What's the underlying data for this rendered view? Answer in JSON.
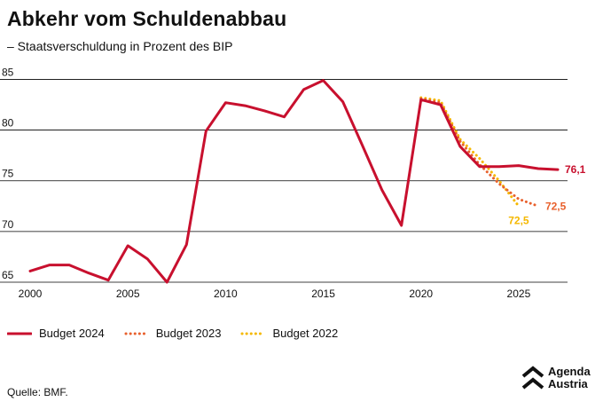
{
  "header": {
    "title": "Abkehr vom Schuldenabbau",
    "subtitle": "– Staatsverschuldung in Prozent des BIP"
  },
  "footer": {
    "source": "Quelle: BMF.",
    "logo_line1": "Agenda",
    "logo_line2": "Austria"
  },
  "chart_data": {
    "type": "line",
    "title": "Abkehr vom Schuldenabbau",
    "subtitle": "– Staatsverschuldung in Prozent des BIP",
    "xlim": [
      2000,
      2027.5
    ],
    "ylim": [
      65,
      86
    ],
    "x_ticks": [
      "2000",
      "2005",
      "2010",
      "2015",
      "2020",
      "2025"
    ],
    "y_ticks": [
      "65",
      "70",
      "75",
      "80",
      "85"
    ],
    "grid": "horizontal",
    "legend_position": "bottom-left",
    "series": [
      {
        "name": "Budget 2024",
        "color": "#c8102e",
        "style": "solid",
        "x": [
          2000,
          2001,
          2002,
          2003,
          2004,
          2005,
          2006,
          2007,
          2008,
          2009,
          2010,
          2011,
          2012,
          2013,
          2014,
          2015,
          2016,
          2017,
          2018,
          2019,
          2020,
          2021,
          2022,
          2023,
          2024,
          2025,
          2026,
          2027
        ],
        "values": [
          66.1,
          66.7,
          66.7,
          65.9,
          65.2,
          68.6,
          67.3,
          65.0,
          68.7,
          79.9,
          82.7,
          82.4,
          81.9,
          81.3,
          84.0,
          84.9,
          82.8,
          78.5,
          74.1,
          70.6,
          83.0,
          82.5,
          78.4,
          76.4,
          76.4,
          76.5,
          76.2,
          76.1
        ],
        "end_label": "76,1"
      },
      {
        "name": "Budget 2023",
        "color": "#e8602c",
        "style": "dotted",
        "x": [
          2020,
          2021,
          2022,
          2023,
          2024,
          2025,
          2026
        ],
        "values": [
          83.1,
          82.7,
          78.9,
          76.6,
          74.7,
          73.2,
          72.5
        ],
        "end_label": "72,5"
      },
      {
        "name": "Budget 2022",
        "color": "#f5b800",
        "style": "dotted",
        "x": [
          2020,
          2021,
          2022,
          2023,
          2024,
          2025,
          2026
        ],
        "values": [
          83.2,
          82.9,
          79.1,
          77.2,
          75.0,
          72.5,
          null
        ],
        "end_label": "72,5"
      }
    ]
  }
}
